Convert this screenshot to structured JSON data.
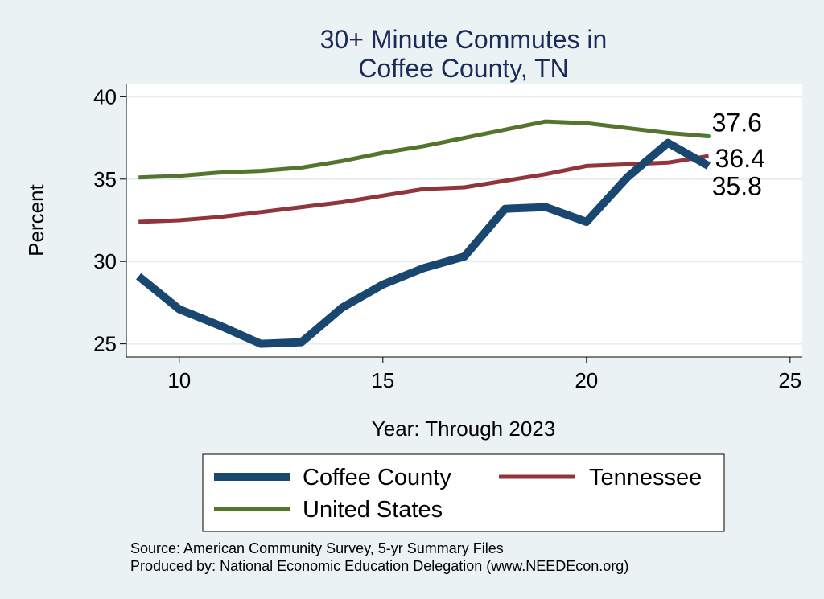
{
  "chart_data": {
    "type": "line",
    "title_lines": [
      "30+ Minute Commutes in",
      "Coffee County, TN"
    ],
    "xlabel": "Year: Through 2023",
    "ylabel": "Percent",
    "xlim": [
      8.7,
      25.3
    ],
    "ylim": [
      24.2,
      40.8
    ],
    "xticks": [
      10,
      15,
      20,
      25
    ],
    "yticks": [
      25,
      30,
      35,
      40
    ],
    "grid": true,
    "legend_position": "bottom",
    "x": [
      9,
      10,
      11,
      12,
      13,
      14,
      15,
      16,
      17,
      18,
      19,
      20,
      21,
      22,
      23
    ],
    "series": [
      {
        "name": "Coffee County",
        "color": "#1a476f",
        "values": [
          29.1,
          27.1,
          26.1,
          25.0,
          25.1,
          27.2,
          28.6,
          29.6,
          30.3,
          33.2,
          33.3,
          32.4,
          35.1,
          37.2,
          35.8
        ],
        "end_label": "35.8"
      },
      {
        "name": "Tennessee",
        "color": "#90353b",
        "values": [
          32.4,
          32.5,
          32.7,
          33.0,
          33.3,
          33.6,
          34.0,
          34.4,
          34.5,
          34.9,
          35.3,
          35.8,
          35.9,
          36.0,
          36.4
        ],
        "end_label": "36.4"
      },
      {
        "name": "United States",
        "color": "#55752f",
        "values": [
          35.1,
          35.2,
          35.4,
          35.5,
          35.7,
          36.1,
          36.6,
          37.0,
          37.5,
          38.0,
          38.5,
          38.4,
          38.1,
          37.8,
          37.6
        ],
        "end_label": "37.6"
      }
    ]
  },
  "source_lines": [
    "Source: American Community Survey, 5-yr Summary Files",
    "Produced by: National Economic Education Delegation (www.NEEDEcon.org)"
  ]
}
